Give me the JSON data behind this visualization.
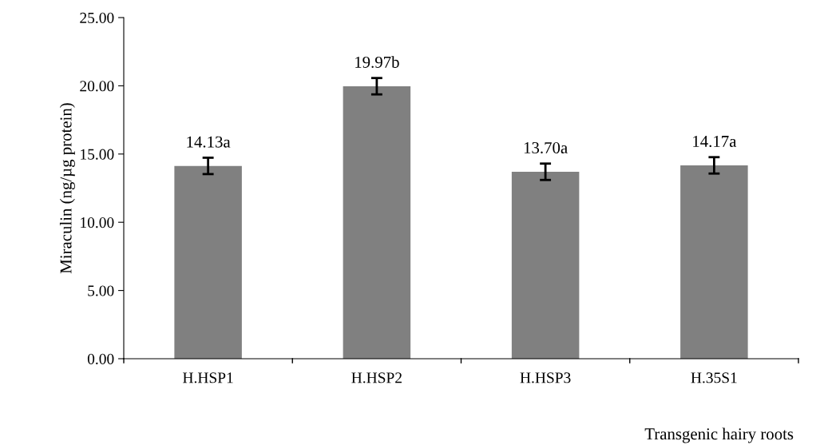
{
  "chart_data": {
    "type": "bar",
    "xlabel": "Transgenic hairy roots",
    "ylabel": "Miraculin (ng/µg protein)",
    "categories": [
      "H.HSP1",
      "H.HSP2",
      "H.HSP3",
      "H.35S1"
    ],
    "values": [
      14.13,
      19.97,
      13.7,
      14.17
    ],
    "color": "#808080",
    "errors": [
      0.6,
      0.6,
      0.6,
      0.6
    ],
    "value_labels": [
      "14.13a",
      "19.97b",
      "13.70a",
      "14.17a"
    ],
    "ylim": [
      0,
      25
    ],
    "yticks": [
      {
        "value": 0,
        "label": "0.00"
      },
      {
        "value": 5,
        "label": "5.00"
      },
      {
        "value": 10,
        "label": "10.00"
      },
      {
        "value": 15,
        "label": "15.00"
      },
      {
        "value": 20,
        "label": "20.00"
      },
      {
        "value": 25,
        "label": "25.00"
      }
    ],
    "grid": false,
    "legend": false
  }
}
